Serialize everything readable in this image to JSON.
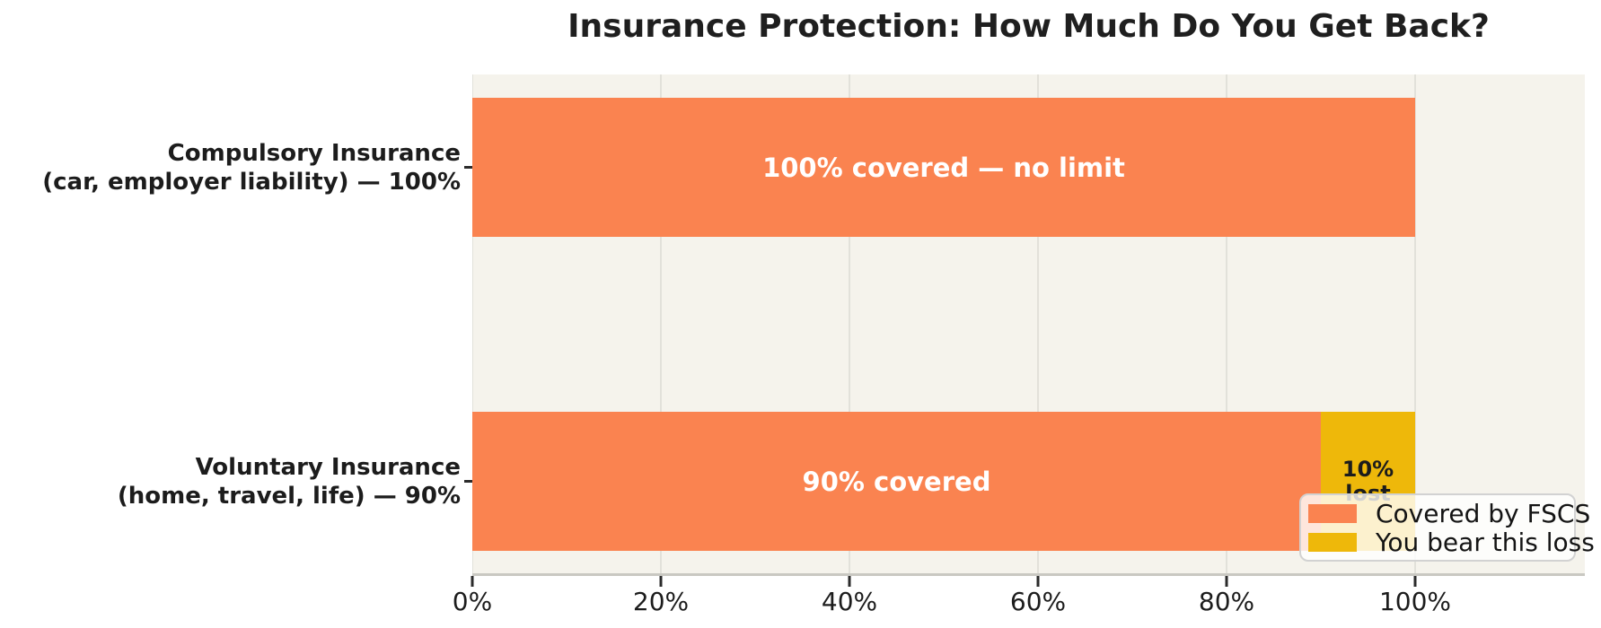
{
  "chart_data": {
    "type": "bar",
    "orientation": "horizontal",
    "stacked": true,
    "title": "Insurance Protection: How Much Do You Get Back?",
    "categories": [
      {
        "label_lines": [
          "Compulsory Insurance",
          "(car, employer liability) — 100%"
        ]
      },
      {
        "label_lines": [
          "Voluntary Insurance",
          "(home, travel, life) — 90%"
        ]
      }
    ],
    "series": [
      {
        "name": "Covered by FSCS",
        "color": "#fa8350",
        "values": [
          100,
          90
        ]
      },
      {
        "name": "You bear this loss",
        "color": "#eeb80a",
        "values": [
          0,
          10
        ]
      }
    ],
    "bar_annotations": {
      "row0_covered": "100% covered — no limit",
      "row1_covered": "90% covered",
      "row1_lost": "10%\nlost"
    },
    "xlim": [
      0,
      118
    ],
    "xticks": [
      {
        "value": 0,
        "label": "0%"
      },
      {
        "value": 20,
        "label": "20%"
      },
      {
        "value": 40,
        "label": "40%"
      },
      {
        "value": 60,
        "label": "60%"
      },
      {
        "value": 80,
        "label": "80%"
      },
      {
        "value": 100,
        "label": "100%"
      }
    ],
    "grid": true,
    "plot_background": "#f5f3ec",
    "legend": {
      "position": "lower right",
      "entries": [
        "Covered by FSCS",
        "You bear this loss"
      ]
    }
  }
}
